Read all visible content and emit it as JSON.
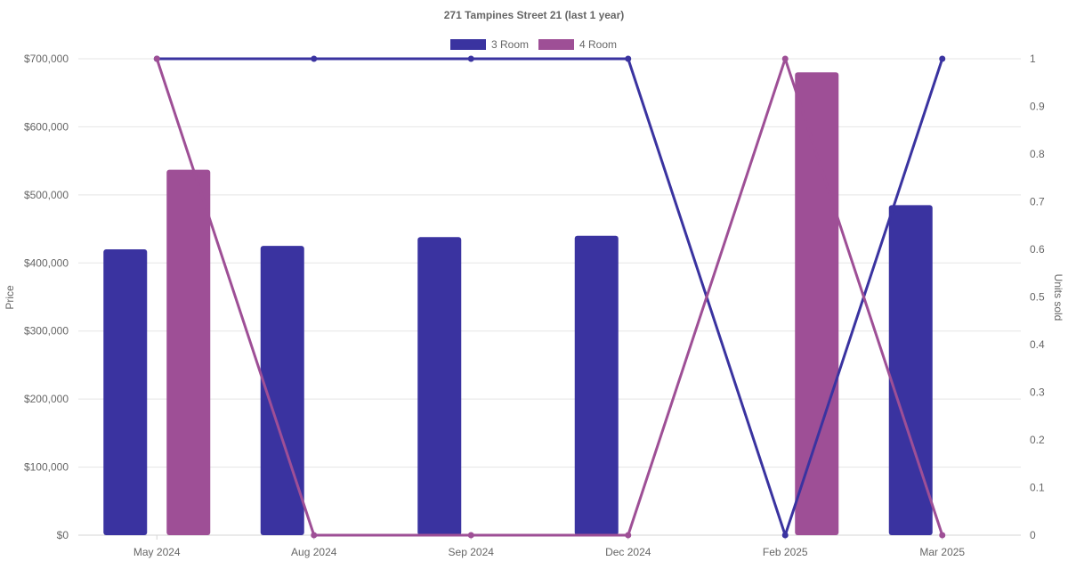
{
  "chart_data": {
    "type": "bar",
    "title": "271 Tampines Street 21 (last 1 year)",
    "categories": [
      "May 2024",
      "Aug 2024",
      "Sep 2024",
      "Dec 2024",
      "Feb 2025",
      "Mar 2025"
    ],
    "bar_series": [
      {
        "name": "3 Room",
        "color": "#3a33a0",
        "values": [
          420000,
          425000,
          438000,
          440000,
          null,
          485000
        ]
      },
      {
        "name": "4 Room",
        "color": "#9e4f96",
        "values": [
          537000,
          null,
          null,
          null,
          680000,
          null
        ]
      }
    ],
    "line_series": [
      {
        "name": "3 Room",
        "color": "#3a33a0",
        "axis": "right",
        "values": [
          1,
          1,
          1,
          1,
          0,
          1
        ]
      },
      {
        "name": "4 Room",
        "color": "#9e4f96",
        "axis": "right",
        "values": [
          1,
          0,
          0,
          0,
          1,
          0
        ]
      }
    ],
    "ylabel": "Price",
    "y2label": "Units sold",
    "ylim": [
      0,
      700000
    ],
    "y2lim": [
      0,
      1
    ],
    "yticks": [
      "$0",
      "$100,000",
      "$200,000",
      "$300,000",
      "$400,000",
      "$500,000",
      "$600,000",
      "$700,000"
    ],
    "y2ticks": [
      "0",
      "0.1",
      "0.2",
      "0.3",
      "0.4",
      "0.5",
      "0.6",
      "0.7",
      "0.8",
      "0.9",
      "1"
    ],
    "legend": [
      {
        "label": "3 Room",
        "color": "#3a33a0"
      },
      {
        "label": "4 Room",
        "color": "#9e4f96"
      }
    ],
    "legend_position": "top-center",
    "grid": true
  }
}
